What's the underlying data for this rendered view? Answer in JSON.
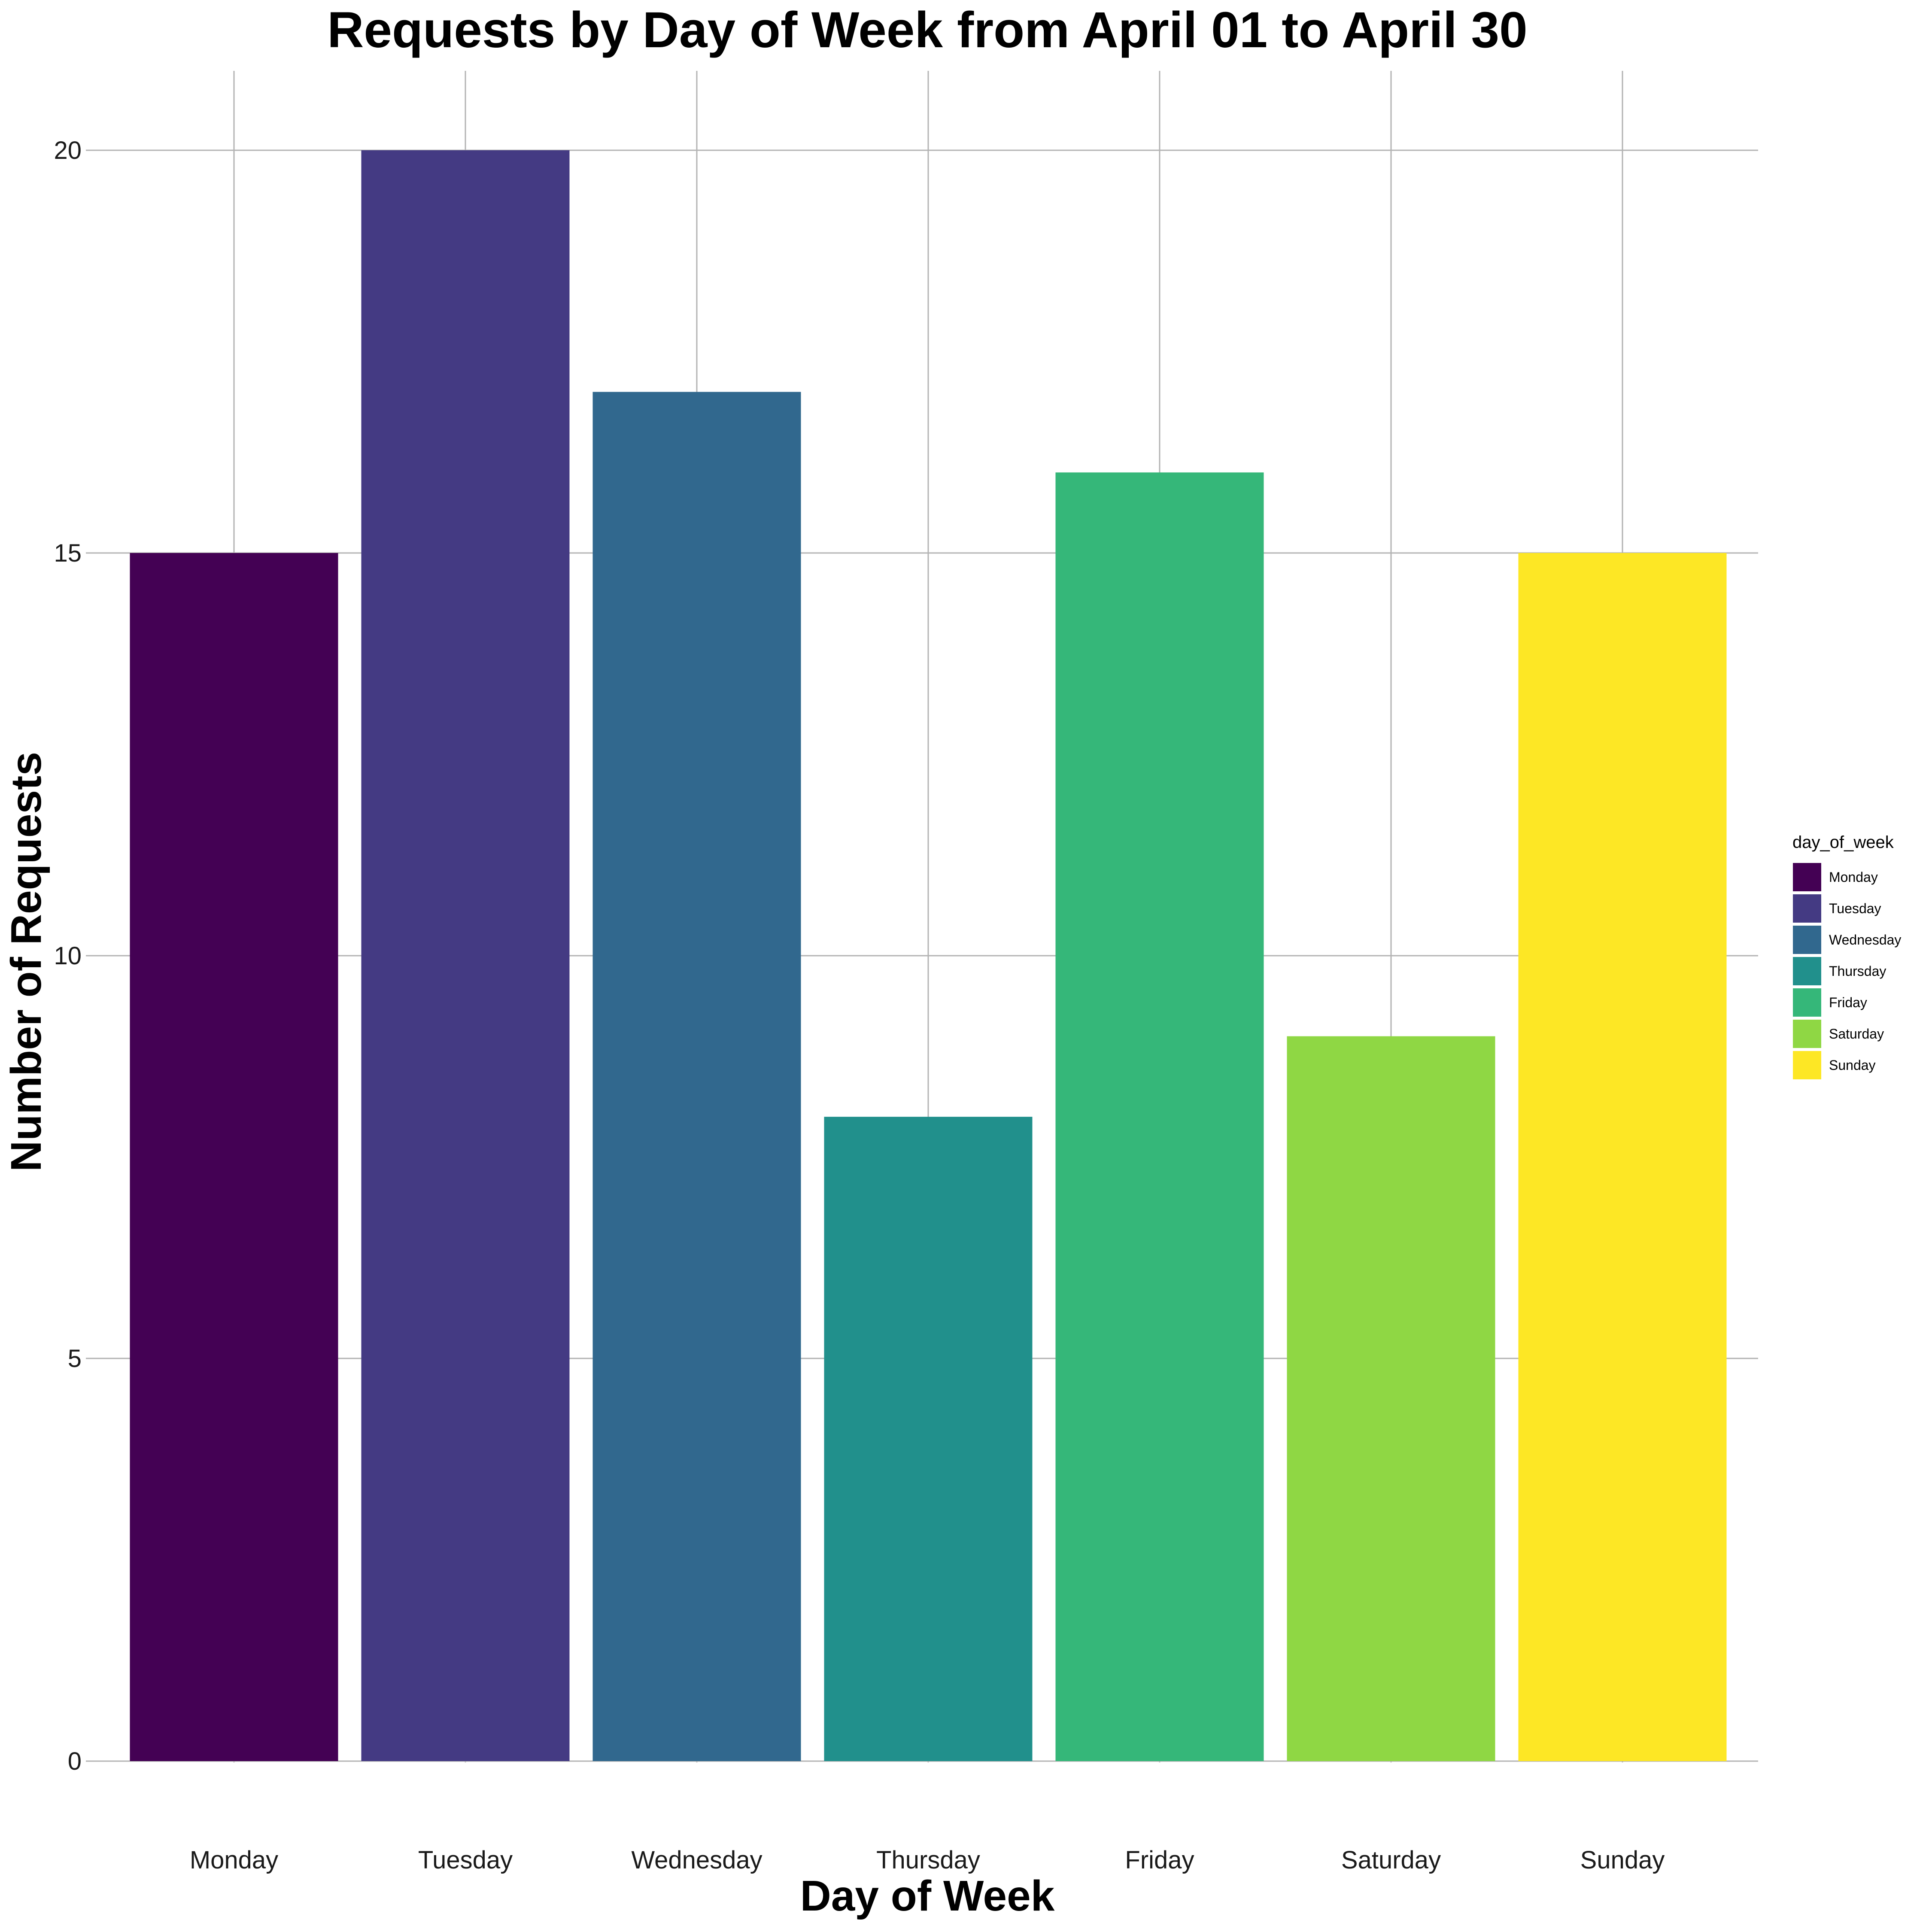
{
  "chart_data": {
    "type": "bar",
    "title": "Requests by Day of Week from April 01 to April 30",
    "xlabel": "Day of Week",
    "ylabel": "Number of Requests",
    "categories": [
      "Monday",
      "Tuesday",
      "Wednesday",
      "Thursday",
      "Friday",
      "Saturday",
      "Sunday"
    ],
    "values": [
      15,
      20,
      17,
      8,
      16,
      9,
      15
    ],
    "colors": [
      "#440154",
      "#443A83",
      "#31688E",
      "#21908C",
      "#35B779",
      "#8FD744",
      "#FDE725"
    ],
    "ylim": [
      0,
      20
    ],
    "yticks": [
      "0",
      "5",
      "10",
      "15",
      "20"
    ],
    "grid": true,
    "legend": {
      "title": "day_of_week",
      "placement": "right",
      "entries": [
        "Monday",
        "Tuesday",
        "Wednesday",
        "Thursday",
        "Friday",
        "Saturday",
        "Sunday"
      ]
    }
  }
}
